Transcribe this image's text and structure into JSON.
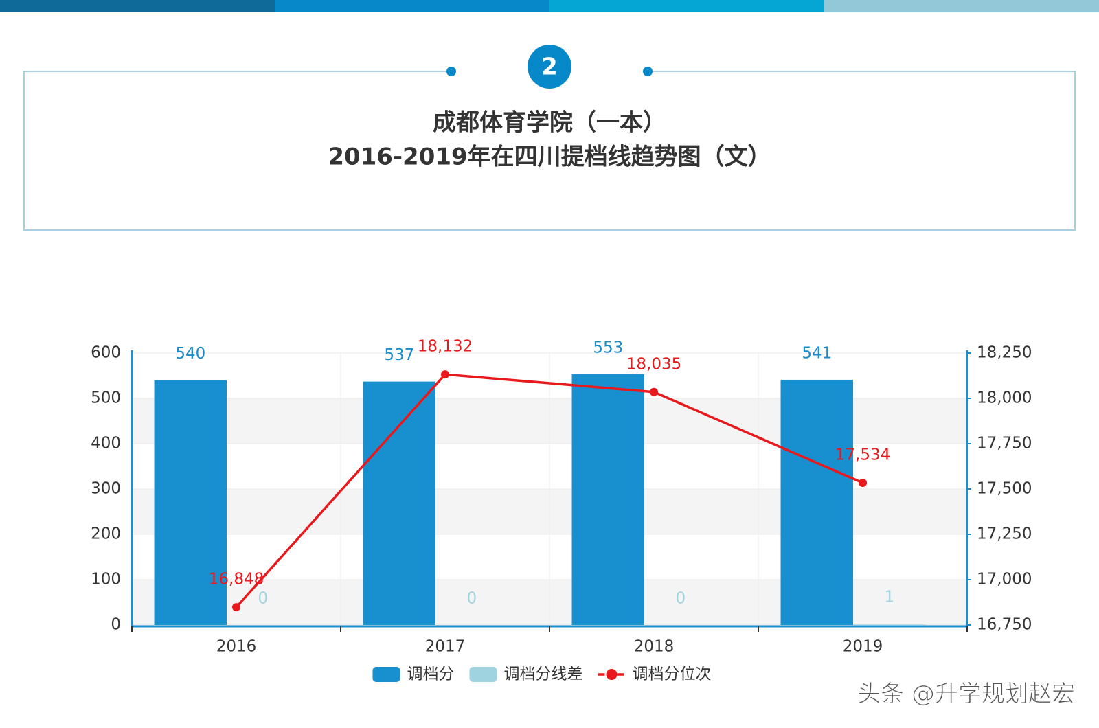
{
  "badge": "2",
  "watermark": "头条 @升学规划赵宏",
  "chart_data": {
    "type": "bar-line",
    "title": "成都体育学院（一本）",
    "subtitle": "2016-2019年在四川提档线趋势图（文）",
    "categories": [
      "2016",
      "2017",
      "2018",
      "2019"
    ],
    "series": [
      {
        "name": "调档分",
        "type": "bar",
        "color": "#1890d0",
        "label_color": "#1a8bc8",
        "values": [
          540,
          537,
          553,
          541
        ]
      },
      {
        "name": "调档分线差",
        "type": "bar",
        "color": "#9fd3e0",
        "label_color": "#9fd3e0",
        "values": [
          0,
          0,
          0,
          1
        ]
      },
      {
        "name": "调档分位次",
        "type": "line",
        "axis": "y2",
        "color": "#e8191c",
        "values": [
          16848,
          18132,
          18035,
          17534
        ],
        "value_labels": [
          "16,848",
          "18,132",
          "18,035",
          "17,534"
        ]
      }
    ],
    "ylim": [
      0,
      600
    ],
    "yticks": [
      0,
      100,
      200,
      300,
      400,
      500,
      600
    ],
    "y2lim": [
      16750,
      18250
    ],
    "y2ticks": [
      {
        "value": 16750,
        "label": "16,750"
      },
      {
        "value": 17000,
        "label": "17,000"
      },
      {
        "value": 17250,
        "label": "17,250"
      },
      {
        "value": 17500,
        "label": "17,500"
      },
      {
        "value": 17750,
        "label": "17,750"
      },
      {
        "value": 18000,
        "label": "18,000"
      },
      {
        "value": 18250,
        "label": "18,250"
      }
    ],
    "grid": true,
    "legend": "bottom"
  }
}
